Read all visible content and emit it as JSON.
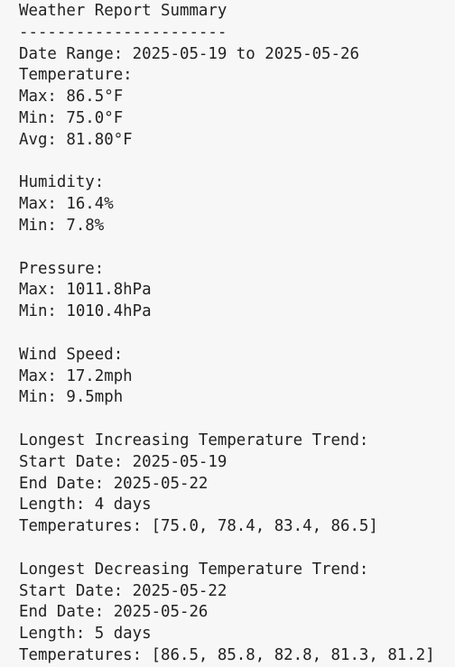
{
  "title": "Weather Report Summary",
  "separator": "----------------------",
  "date_range": "Date Range: 2025-05-19 to 2025-05-26",
  "sections": [
    {
      "heading": "Temperature:",
      "lines": [
        "Max: 86.5°F",
        "Min: 75.0°F",
        "Avg: 81.80°F"
      ]
    },
    {
      "heading": "Humidity:",
      "lines": [
        "Max: 16.4%",
        "Min: 7.8%"
      ]
    },
    {
      "heading": "Pressure:",
      "lines": [
        "Max: 1011.8hPa",
        "Min: 1010.4hPa"
      ]
    },
    {
      "heading": "Wind Speed:",
      "lines": [
        "Max: 17.2mph",
        "Min: 9.5mph"
      ]
    },
    {
      "heading": "Longest Increasing Temperature Trend:",
      "lines": [
        "Start Date: 2025-05-19",
        "End Date: 2025-05-22",
        "Length: 4 days",
        "Temperatures: [75.0, 78.4, 83.4, 86.5]"
      ]
    },
    {
      "heading": "Longest Decreasing Temperature Trend:",
      "lines": [
        "Start Date: 2025-05-22",
        "End Date: 2025-05-26",
        "Length: 5 days",
        "Temperatures: [86.5, 85.8, 82.8, 81.3, 81.2]"
      ]
    }
  ]
}
